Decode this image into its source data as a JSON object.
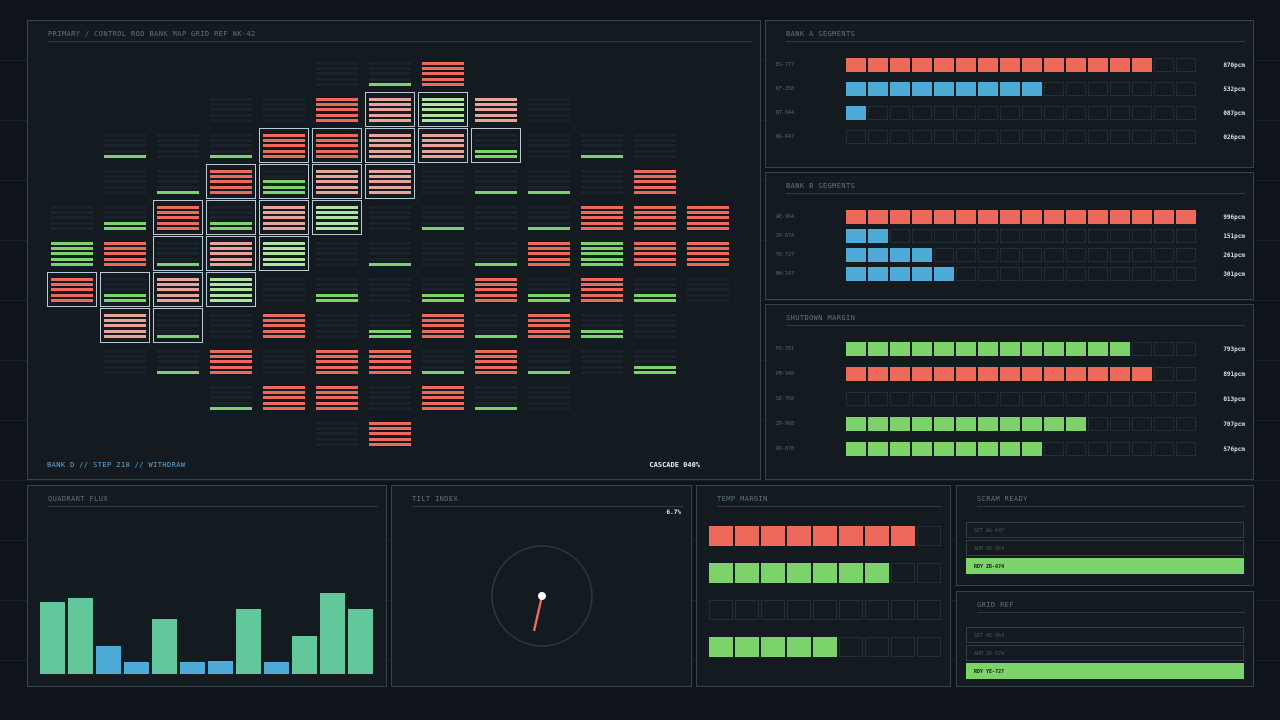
{
  "colors": {
    "red": "#ed6a5a",
    "green": "#7bd36a",
    "blue": "#4eaad6",
    "pink": "#e8a39b",
    "lightgreen": "#aee49c",
    "empty": "#1f2931",
    "teal": "#62c79a"
  },
  "main": {
    "title": "PRIMARY / CONTROL ROD BANK MAP  GRID REF NK-42",
    "footer_left": "BANK D  //  STEP 218  //  WITHDRAW",
    "footer_right": "CASCADE 040%"
  },
  "bankA": {
    "title": "BANK A SEGMENTS",
    "rows": [
      {
        "label": "EG-777",
        "filled": 14,
        "color": "red",
        "value": "870pcm"
      },
      {
        "label": "KF-358",
        "filled": 9,
        "color": "blue",
        "value": "532pcm"
      },
      {
        "label": "NT-844",
        "filled": 1,
        "color": "blue",
        "value": "087pcm"
      },
      {
        "label": "WG-647",
        "filled": 0,
        "color": "red",
        "value": "026pcm"
      }
    ]
  },
  "bankB": {
    "title": "BANK B SEGMENTS",
    "rows": [
      {
        "label": "AE-964",
        "filled": 16,
        "color": "red",
        "value": "996pcm"
      },
      {
        "label": "ZR-674",
        "filled": 2,
        "color": "blue",
        "value": "151pcm"
      },
      {
        "label": "YE-727",
        "filled": 4,
        "color": "blue",
        "value": "261pcm"
      },
      {
        "label": "MH-147",
        "filled": 5,
        "color": "blue",
        "value": "301pcm"
      }
    ]
  },
  "shutdown": {
    "title": "SHUTDOWN MARGIN",
    "rows": [
      {
        "label": "PO-761",
        "filled": 13,
        "color": "green",
        "value": "793pcm"
      },
      {
        "label": "PM-348",
        "filled": 14,
        "color": "red",
        "value": "891pcm"
      },
      {
        "label": "SE-768",
        "filled": 0,
        "color": "green",
        "value": "013pcm"
      },
      {
        "label": "ZP-968",
        "filled": 11,
        "color": "green",
        "value": "707pcm"
      },
      {
        "label": "RD-078",
        "filled": 9,
        "color": "green",
        "value": "576pcm"
      }
    ]
  },
  "flux": {
    "title": "QUADRANT FLUX",
    "values": [
      0.86,
      0.91,
      0.33,
      0.14,
      0.65,
      0.14,
      0.16,
      0.77,
      0.14,
      0.45,
      0.97,
      0.77
    ]
  },
  "tilt": {
    "title": "TILT INDEX",
    "value": "6.7%"
  },
  "temp": {
    "title": "TEMP MARGIN",
    "rows": [
      {
        "filled": 8,
        "color": "red"
      },
      {
        "filled": 7,
        "color": "green"
      },
      {
        "filled": 0,
        "color": "green"
      },
      {
        "filled": 5,
        "color": "green"
      }
    ]
  },
  "scram": {
    "title": "SCRAM READY",
    "rows": [
      {
        "text": "SET WG-647",
        "active": false
      },
      {
        "text": "ARM AE-964",
        "active": false
      },
      {
        "text": "RDY ZR-674",
        "active": true
      }
    ]
  },
  "gridref": {
    "title": "GRID REF",
    "rows": [
      {
        "text": "SET AE-964",
        "active": false
      },
      {
        "text": "ARM ZR-674",
        "active": false
      },
      {
        "text": "RDY YE-727",
        "active": true
      }
    ]
  },
  "rodmap": {
    "cells": [
      {
        "c": 5,
        "r": 0,
        "t": "e"
      },
      {
        "c": 6,
        "r": 0,
        "t": "g1"
      },
      {
        "c": 7,
        "r": 0,
        "t": "r"
      },
      {
        "c": 3,
        "r": 1,
        "t": "e"
      },
      {
        "c": 4,
        "r": 1,
        "t": "e"
      },
      {
        "c": 5,
        "r": 1,
        "t": "r"
      },
      {
        "c": 6,
        "r": 1,
        "t": "ph"
      },
      {
        "c": 7,
        "r": 1,
        "t": "lgh"
      },
      {
        "c": 8,
        "r": 1,
        "t": "p"
      },
      {
        "c": 9,
        "r": 1,
        "t": "lgh2"
      },
      {
        "c": 1,
        "r": 2,
        "t": "g1"
      },
      {
        "c": 2,
        "r": 2,
        "t": "e"
      },
      {
        "c": 3,
        "r": 2,
        "t": "g1"
      },
      {
        "c": 4,
        "r": 2,
        "t": "rh"
      },
      {
        "c": 5,
        "r": 2,
        "t": "rh"
      },
      {
        "c": 6,
        "r": 2,
        "t": "ph"
      },
      {
        "c": 7,
        "r": 2,
        "t": "ph"
      },
      {
        "c": 8,
        "r": 2,
        "t": "g2h"
      },
      {
        "c": 9,
        "r": 2,
        "t": "e"
      },
      {
        "c": 10,
        "r": 2,
        "t": "g1"
      },
      {
        "c": 11,
        "r": 2,
        "t": "e"
      },
      {
        "c": 1,
        "r": 3,
        "t": "e"
      },
      {
        "c": 2,
        "r": 3,
        "t": "g1"
      },
      {
        "c": 3,
        "r": 3,
        "t": "rh"
      },
      {
        "c": 4,
        "r": 3,
        "t": "gmh"
      },
      {
        "c": 5,
        "r": 3,
        "t": "ph"
      },
      {
        "c": 6,
        "r": 3,
        "t": "ph"
      },
      {
        "c": 7,
        "r": 3,
        "t": "e"
      },
      {
        "c": 8,
        "r": 3,
        "t": "g1"
      },
      {
        "c": 9,
        "r": 3,
        "t": "g1"
      },
      {
        "c": 10,
        "r": 3,
        "t": "e"
      },
      {
        "c": 11,
        "r": 3,
        "t": "r"
      },
      {
        "c": 0,
        "r": 4,
        "t": "e"
      },
      {
        "c": 1,
        "r": 4,
        "t": "g2"
      },
      {
        "c": 2,
        "r": 4,
        "t": "rh"
      },
      {
        "c": 3,
        "r": 4,
        "t": "g2h"
      },
      {
        "c": 4,
        "r": 4,
        "t": "ph"
      },
      {
        "c": 5,
        "r": 4,
        "t": "lgh"
      },
      {
        "c": 6,
        "r": 4,
        "t": "e"
      },
      {
        "c": 7,
        "r": 4,
        "t": "g1"
      },
      {
        "c": 8,
        "r": 4,
        "t": "e"
      },
      {
        "c": 9,
        "r": 4,
        "t": "g1"
      },
      {
        "c": 10,
        "r": 4,
        "t": "r"
      },
      {
        "c": 11,
        "r": 4,
        "t": "r"
      },
      {
        "c": 12,
        "r": 4,
        "t": "r"
      },
      {
        "c": 0,
        "r": 5,
        "t": "g"
      },
      {
        "c": 1,
        "r": 5,
        "t": "r"
      },
      {
        "c": 2,
        "r": 5,
        "t": "g1h"
      },
      {
        "c": 3,
        "r": 5,
        "t": "ph"
      },
      {
        "c": 4,
        "r": 5,
        "t": "lgh"
      },
      {
        "c": 5,
        "r": 5,
        "t": "e"
      },
      {
        "c": 6,
        "r": 5,
        "t": "g1"
      },
      {
        "c": 7,
        "r": 5,
        "t": "e"
      },
      {
        "c": 8,
        "r": 5,
        "t": "g1"
      },
      {
        "c": 9,
        "r": 5,
        "t": "r"
      },
      {
        "c": 10,
        "r": 5,
        "t": "g"
      },
      {
        "c": 11,
        "r": 5,
        "t": "r"
      },
      {
        "c": 12,
        "r": 5,
        "t": "r"
      },
      {
        "c": 0,
        "r": 6,
        "t": "rh"
      },
      {
        "c": 1,
        "r": 6,
        "t": "g2h"
      },
      {
        "c": 2,
        "r": 6,
        "t": "ph"
      },
      {
        "c": 3,
        "r": 6,
        "t": "lgh"
      },
      {
        "c": 4,
        "r": 6,
        "t": "e"
      },
      {
        "c": 5,
        "r": 6,
        "t": "g2"
      },
      {
        "c": 6,
        "r": 6,
        "t": "e"
      },
      {
        "c": 7,
        "r": 6,
        "t": "g2"
      },
      {
        "c": 8,
        "r": 6,
        "t": "r"
      },
      {
        "c": 9,
        "r": 6,
        "t": "g2"
      },
      {
        "c": 10,
        "r": 6,
        "t": "r"
      },
      {
        "c": 11,
        "r": 6,
        "t": "g2"
      },
      {
        "c": 12,
        "r": 6,
        "t": "e"
      },
      {
        "c": 1,
        "r": 7,
        "t": "ph"
      },
      {
        "c": 2,
        "r": 7,
        "t": "g1h"
      },
      {
        "c": 3,
        "r": 7,
        "t": "e"
      },
      {
        "c": 4,
        "r": 7,
        "t": "r"
      },
      {
        "c": 5,
        "r": 7,
        "t": "e"
      },
      {
        "c": 6,
        "r": 7,
        "t": "g2"
      },
      {
        "c": 7,
        "r": 7,
        "t": "r"
      },
      {
        "c": 8,
        "r": 7,
        "t": "g1"
      },
      {
        "c": 9,
        "r": 7,
        "t": "r"
      },
      {
        "c": 10,
        "r": 7,
        "t": "g2"
      },
      {
        "c": 11,
        "r": 7,
        "t": "e"
      },
      {
        "c": 1,
        "r": 8,
        "t": "e"
      },
      {
        "c": 2,
        "r": 8,
        "t": "g1"
      },
      {
        "c": 3,
        "r": 8,
        "t": "r"
      },
      {
        "c": 4,
        "r": 8,
        "t": "e"
      },
      {
        "c": 5,
        "r": 8,
        "t": "r"
      },
      {
        "c": 6,
        "r": 8,
        "t": "r"
      },
      {
        "c": 7,
        "r": 8,
        "t": "g1"
      },
      {
        "c": 8,
        "r": 8,
        "t": "r"
      },
      {
        "c": 9,
        "r": 8,
        "t": "g1"
      },
      {
        "c": 10,
        "r": 8,
        "t": "e"
      },
      {
        "c": 11,
        "r": 8,
        "t": "g2"
      },
      {
        "c": 3,
        "r": 9,
        "t": "g1"
      },
      {
        "c": 4,
        "r": 9,
        "t": "r"
      },
      {
        "c": 5,
        "r": 9,
        "t": "r"
      },
      {
        "c": 6,
        "r": 9,
        "t": "e"
      },
      {
        "c": 7,
        "r": 9,
        "t": "r"
      },
      {
        "c": 8,
        "r": 9,
        "t": "g1"
      },
      {
        "c": 9,
        "r": 9,
        "t": "e"
      },
      {
        "c": 5,
        "r": 10,
        "t": "e"
      },
      {
        "c": 6,
        "r": 10,
        "t": "r"
      }
    ]
  }
}
